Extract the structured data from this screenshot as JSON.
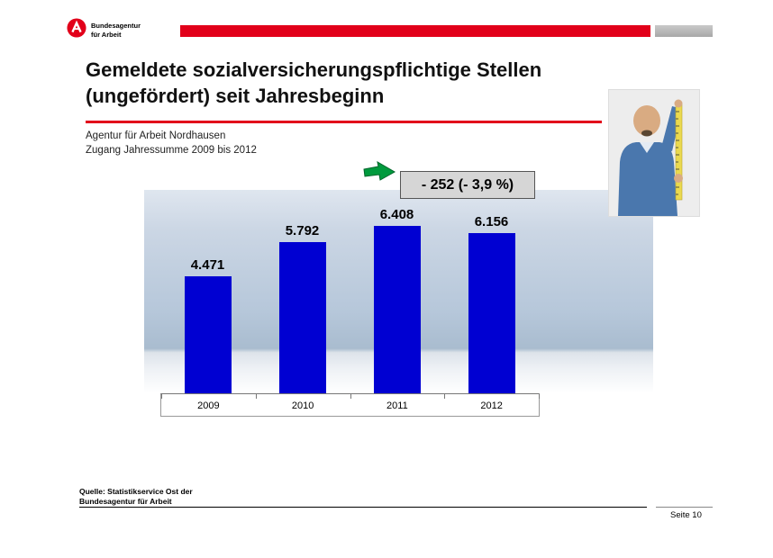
{
  "logo": {
    "line1": "Bundesagentur",
    "line2": "für Arbeit",
    "icon": "ba-logo-badge"
  },
  "title": {
    "line1": "Gemeldete sozialversicherungspflichtige Stellen",
    "line2": "(ungefördert) seit Jahresbeginn"
  },
  "subtitle": {
    "line1": "Agentur für Arbeit Nordhausen",
    "line2": "Zugang Jahressumme 2009 bis 2012"
  },
  "annotation": {
    "label": "- 252 (- 3,9 %)",
    "arrow_icon": "green-arrow",
    "arrow_color": "#009a3d",
    "box_color": "#d6d6d6"
  },
  "chart_data": {
    "type": "bar",
    "categories": [
      "2009",
      "2010",
      "2011",
      "2012"
    ],
    "values": [
      4471,
      5792,
      6408,
      6156
    ],
    "value_labels": [
      "4.471",
      "5.792",
      "6.408",
      "6.156"
    ],
    "title": "",
    "xlabel": "",
    "ylabel": "",
    "ylim": [
      0,
      7800
    ],
    "grid": false,
    "legend": false,
    "bar_color": "#0000d2",
    "annotation": "- 252 (- 3,9 %)"
  },
  "photo": {
    "description": "man-with-measuring-tape-photo"
  },
  "footer": {
    "source_line1": "Quelle: Statistikservice Ost der",
    "source_line2": "Bundesagentur für Arbeit",
    "page": "Seite 10"
  },
  "colors": {
    "accent_red": "#e2001a",
    "bar_blue": "#0000d2",
    "header_gray": "#b0b0b0"
  }
}
